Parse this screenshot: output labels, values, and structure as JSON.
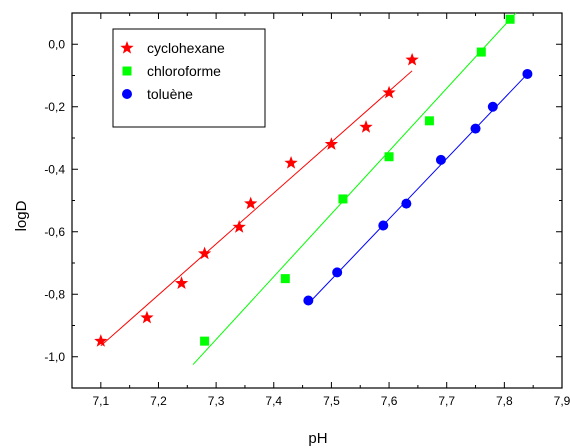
{
  "chart_data": {
    "type": "scatter",
    "xlabel": "pH",
    "ylabel": "logD",
    "xlim": [
      7.05,
      7.9
    ],
    "ylim": [
      -1.1,
      0.1
    ],
    "xticks": [
      "7,1",
      "7,2",
      "7,3",
      "7,4",
      "7,5",
      "7,6",
      "7,7",
      "7,8",
      "7,9"
    ],
    "yticks": [
      "-1,0",
      "-0,8",
      "-0,6",
      "-0,4",
      "-0,2",
      "0,0"
    ],
    "legend_position": "top-left",
    "grid": false,
    "series": [
      {
        "name": "cyclohexane",
        "color": "#ff0000",
        "marker": "star",
        "x": [
          7.1,
          7.18,
          7.24,
          7.28,
          7.34,
          7.36,
          7.43,
          7.5,
          7.56,
          7.6,
          7.64
        ],
        "y": [
          -0.95,
          -0.875,
          -0.765,
          -0.67,
          -0.585,
          -0.51,
          -0.38,
          -0.32,
          -0.265,
          -0.155,
          -0.05
        ],
        "fit": {
          "x": [
            7.1,
            7.64
          ],
          "y": [
            -0.965,
            -0.085
          ]
        }
      },
      {
        "name": "chloroforme",
        "color": "#00ff00",
        "marker": "square",
        "x": [
          7.28,
          7.42,
          7.52,
          7.6,
          7.67,
          7.76,
          7.81
        ],
        "y": [
          -0.95,
          -0.75,
          -0.495,
          -0.36,
          -0.245,
          -0.025,
          0.08
        ],
        "fit": {
          "x": [
            7.26,
            7.82
          ],
          "y": [
            -1.025,
            0.1
          ]
        }
      },
      {
        "name": "toluène",
        "color": "#0000ff",
        "marker": "circle",
        "x": [
          7.46,
          7.51,
          7.59,
          7.63,
          7.69,
          7.75,
          7.78,
          7.84
        ],
        "y": [
          -0.82,
          -0.73,
          -0.58,
          -0.51,
          -0.37,
          -0.27,
          -0.2,
          -0.095
        ],
        "fit": {
          "x": [
            7.46,
            7.84
          ],
          "y": [
            -0.83,
            -0.095
          ]
        }
      }
    ]
  }
}
